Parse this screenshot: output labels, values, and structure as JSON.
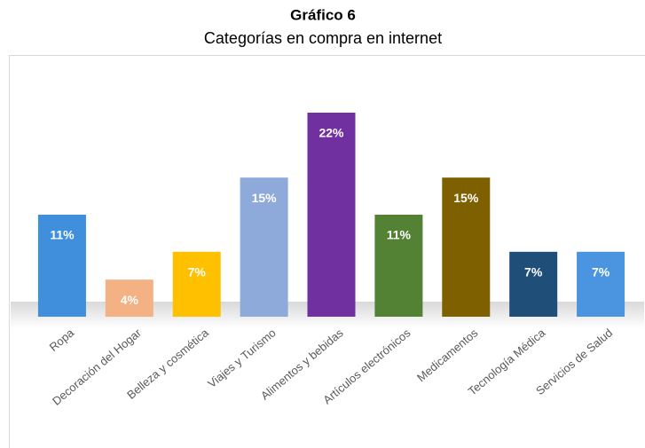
{
  "chart_data": {
    "type": "bar",
    "title": "Gráfico 6",
    "subtitle": "Categorías en compra en internet",
    "categories": [
      "Ropa",
      "Decoración del Hogar",
      "Belleza y cosmética",
      "Viajes y Turismo",
      "Alimentos y bebidas",
      "Artículos electrónicos",
      "Medicamentos",
      "Tecnología Médica",
      "Servicios de Salud"
    ],
    "values": [
      11,
      4,
      7,
      15,
      22,
      11,
      15,
      7,
      7
    ],
    "value_labels": [
      "11%",
      "4%",
      "7%",
      "15%",
      "22%",
      "11%",
      "15%",
      "7%",
      "7%"
    ],
    "colors": [
      "#3f8fdc",
      "#f4b183",
      "#ffc000",
      "#8eaadb",
      "#7030a0",
      "#548235",
      "#7f6000",
      "#1f4e79",
      "#4a94e0"
    ]
  }
}
